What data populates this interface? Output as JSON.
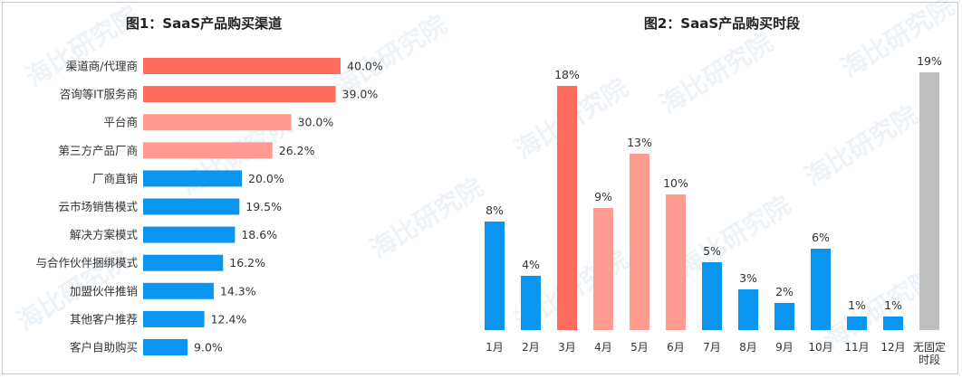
{
  "watermark": "海比研究院",
  "chart_data": [
    {
      "type": "bar",
      "orientation": "horizontal",
      "title": "图1：SaaS产品购买渠道",
      "categories": [
        "渠道商/代理商",
        "咨询等IT服务商",
        "平台商",
        "第三方产品厂商",
        "厂商直销",
        "云市场销售模式",
        "解决方案模式",
        "与合作伙伴捆绑模式",
        "加盟伙伴推销",
        "其他客户推荐",
        "客户自助购买"
      ],
      "values": [
        40.0,
        39.0,
        30.0,
        26.2,
        20.0,
        19.5,
        18.6,
        16.2,
        14.3,
        12.4,
        9.0
      ],
      "labels": [
        "40.0%",
        "39.0%",
        "30.0%",
        "26.2%",
        "20.0%",
        "19.5%",
        "18.6%",
        "16.2%",
        "14.3%",
        "12.4%",
        "9.0%"
      ],
      "colors": [
        "#ff6b5c",
        "#ff6b5c",
        "#ff9b90",
        "#ff9b90",
        "#0a96f0",
        "#0a96f0",
        "#0a96f0",
        "#0a96f0",
        "#0a96f0",
        "#0a96f0",
        "#0a96f0"
      ],
      "xlim": [
        0,
        40
      ],
      "grid": false
    },
    {
      "type": "bar",
      "orientation": "vertical",
      "title": "图2：SaaS产品购买时段",
      "categories": [
        "1月",
        "2月",
        "3月",
        "4月",
        "5月",
        "6月",
        "7月",
        "8月",
        "9月",
        "10月",
        "11月",
        "12月",
        "无固定时段"
      ],
      "values": [
        8,
        4,
        18,
        9,
        13,
        10,
        5,
        3,
        2,
        6,
        1,
        1,
        19
      ],
      "labels": [
        "8%",
        "4%",
        "18%",
        "9%",
        "13%",
        "10%",
        "5%",
        "3%",
        "2%",
        "6%",
        "1%",
        "1%",
        "19%"
      ],
      "colors": [
        "#0a96f0",
        "#0a96f0",
        "#ff6b5c",
        "#ff9b90",
        "#ff9b90",
        "#ff9b90",
        "#0a96f0",
        "#0a96f0",
        "#0a96f0",
        "#0a96f0",
        "#0a96f0",
        "#0a96f0",
        "#bfbfbf"
      ],
      "ylim": [
        0,
        19
      ],
      "grid": false
    }
  ]
}
